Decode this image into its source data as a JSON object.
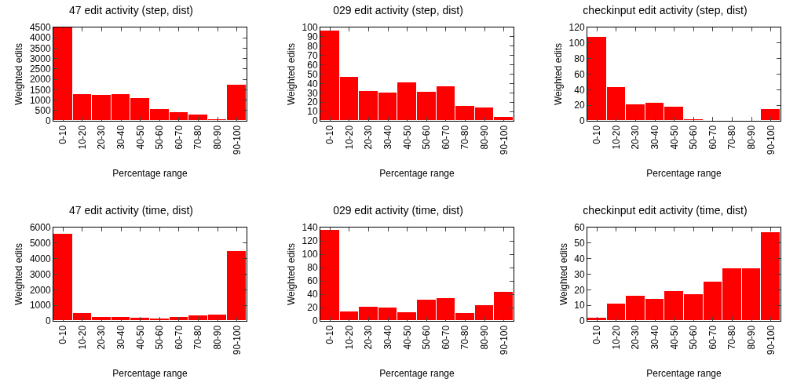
{
  "chart_data": [
    {
      "type": "bar",
      "title": "47 edit activity (step, dist)",
      "xlabel": "Percentage range",
      "ylabel": "Weighted edits",
      "categories": [
        "0-10",
        "10-20",
        "20-30",
        "30-40",
        "40-50",
        "50-60",
        "60-70",
        "70-80",
        "80-90",
        "90-100"
      ],
      "values": [
        4500,
        1300,
        1250,
        1300,
        1100,
        580,
        400,
        300,
        60,
        1750
      ],
      "color": "#ff0000",
      "ylim": [
        0,
        4500
      ],
      "yticks": [
        0,
        500,
        1000,
        1500,
        2000,
        2500,
        3000,
        3500,
        4000,
        4500
      ]
    },
    {
      "type": "bar",
      "title": "029 edit activity (step, dist)",
      "xlabel": "Percentage range",
      "ylabel": "Weighted edits",
      "categories": [
        "0-10",
        "10-20",
        "20-30",
        "30-40",
        "40-50",
        "50-60",
        "60-70",
        "70-80",
        "80-90",
        "90-100"
      ],
      "values": [
        97,
        47,
        32,
        30,
        41,
        31,
        37,
        16,
        14,
        4
      ],
      "color": "#ff0000",
      "ylim": [
        0,
        100
      ],
      "yticks": [
        0,
        10,
        20,
        30,
        40,
        50,
        60,
        70,
        80,
        90,
        100
      ]
    },
    {
      "type": "bar",
      "title": "checkinput edit activity (step, dist)",
      "xlabel": "Percentage range",
      "ylabel": "Weighted edits",
      "categories": [
        "0-10",
        "10-20",
        "20-30",
        "30-40",
        "40-50",
        "50-60",
        "60-70",
        "70-80",
        "80-90",
        "90-100"
      ],
      "values": [
        108,
        43,
        21,
        23,
        18,
        2,
        0,
        0,
        0,
        15
      ],
      "color": "#ff0000",
      "ylim": [
        0,
        120
      ],
      "yticks": [
        0,
        20,
        40,
        60,
        80,
        100,
        120
      ]
    },
    {
      "type": "bar",
      "title": "47 edit activity (time, dist)",
      "xlabel": "Percentage range",
      "ylabel": "Weighted edits",
      "categories": [
        "0-10",
        "10-20",
        "20-30",
        "30-40",
        "40-50",
        "50-60",
        "60-70",
        "70-80",
        "80-90",
        "90-100"
      ],
      "values": [
        5600,
        500,
        250,
        250,
        200,
        150,
        230,
        350,
        380,
        4500
      ],
      "color": "#ff0000",
      "ylim": [
        0,
        6000
      ],
      "yticks": [
        0,
        1000,
        2000,
        3000,
        4000,
        5000,
        6000
      ]
    },
    {
      "type": "bar",
      "title": "029 edit activity (time, dist)",
      "xlabel": "Percentage range",
      "ylabel": "Weighted edits",
      "categories": [
        "0-10",
        "10-20",
        "20-30",
        "30-40",
        "40-50",
        "50-60",
        "60-70",
        "70-80",
        "80-90",
        "90-100"
      ],
      "values": [
        136,
        14,
        21,
        20,
        13,
        32,
        34,
        12,
        23,
        44
      ],
      "color": "#ff0000",
      "ylim": [
        0,
        140
      ],
      "yticks": [
        0,
        20,
        40,
        60,
        80,
        100,
        120,
        140
      ]
    },
    {
      "type": "bar",
      "title": "checkinput edit activity (time, dist)",
      "xlabel": "Percentage range",
      "ylabel": "Weighted edits",
      "categories": [
        "0-10",
        "10-20",
        "20-30",
        "30-40",
        "40-50",
        "50-60",
        "60-70",
        "70-80",
        "80-90",
        "90-100"
      ],
      "values": [
        2,
        11,
        16,
        14,
        19,
        17,
        25,
        34,
        34,
        57
      ],
      "color": "#ff0000",
      "ylim": [
        0,
        60
      ],
      "yticks": [
        0,
        10,
        20,
        30,
        40,
        50,
        60
      ]
    }
  ]
}
